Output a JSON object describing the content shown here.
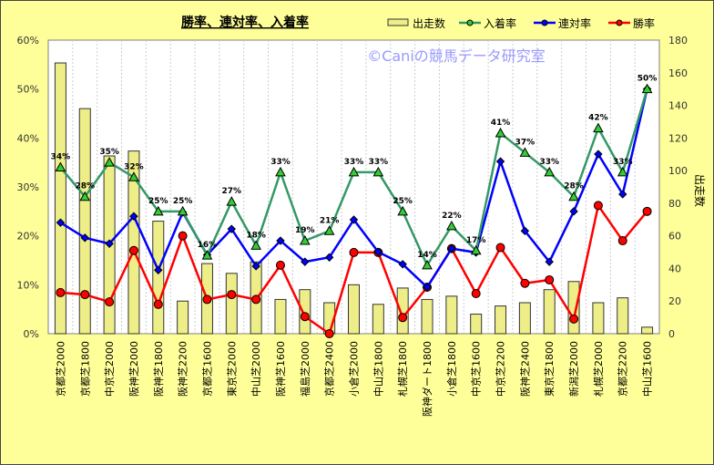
{
  "chart_data": {
    "type": "bar+line",
    "title": "勝率、連対率、入着率",
    "watermark": "©Caniの競馬データ研究室",
    "y_left": {
      "min": 0,
      "max": 60,
      "step": 10,
      "unit": "%"
    },
    "y_right": {
      "min": 0,
      "max": 180,
      "step": 20,
      "label": "出走数"
    },
    "categories": [
      "京都芝2000",
      "京都芝1800",
      "中京芝2000",
      "阪神芝2000",
      "阪神芝1800",
      "阪神芝2200",
      "京都芝1600",
      "東京芝2000",
      "中山芝2000",
      "阪神芝1600",
      "福島芝2000",
      "京都芝2400",
      "小倉芝2000",
      "中山芝1800",
      "札幌芝1800",
      "阪神ダート1800",
      "小倉芝1800",
      "中京芝1600",
      "中京芝2200",
      "阪神芝2400",
      "東京芝1800",
      "新潟芝2000",
      "札幌芝2000",
      "京都芝2200",
      "中山芝1600"
    ],
    "series": [
      {
        "name": "出走数",
        "type": "bar",
        "axis": "right",
        "color": "#eeee88",
        "values": [
          166,
          138,
          109,
          112,
          69,
          20,
          43,
          37,
          44,
          21,
          27,
          19,
          30,
          18,
          28,
          21,
          23,
          12,
          17,
          19,
          27,
          32,
          19,
          22,
          4
        ]
      },
      {
        "name": "入着率",
        "type": "line",
        "axis": "left",
        "color": "#339966",
        "values": [
          34,
          28,
          35,
          32,
          25,
          25,
          16,
          27,
          18,
          33,
          19,
          21,
          33,
          33,
          25,
          14,
          22,
          17,
          41,
          37,
          33,
          28,
          42,
          33,
          50
        ],
        "labels": [
          "34%",
          "28%",
          "35%",
          "32%",
          "25%",
          "25%",
          "16%",
          "27%",
          "18%",
          "33%",
          "19%",
          "21%",
          "33%",
          "33%",
          "25%",
          "14%",
          "22%",
          "17%",
          "41%",
          "37%",
          "33%",
          "28%",
          "42%",
          "33%",
          "50%"
        ]
      },
      {
        "name": "連対率",
        "type": "line",
        "axis": "left",
        "color": "#0000ff",
        "values": [
          22.7,
          19.6,
          18.4,
          24,
          13,
          24.8,
          16.1,
          21.4,
          13.8,
          19,
          14.7,
          15.6,
          23.3,
          16.7,
          14.2,
          9.5,
          17.4,
          16.6,
          35.2,
          21,
          14.7,
          25,
          36.7,
          28.5,
          50
        ]
      },
      {
        "name": "勝率",
        "type": "line",
        "axis": "left",
        "color": "#ff0000",
        "values": [
          8.4,
          8,
          6.5,
          17,
          6,
          20,
          7,
          8,
          7,
          14,
          3.5,
          0,
          16.6,
          16.6,
          3.3,
          9.5,
          17.4,
          8.2,
          17.6,
          10.3,
          11,
          3,
          26.2,
          19,
          25
        ]
      }
    ],
    "legend": "top-right"
  }
}
